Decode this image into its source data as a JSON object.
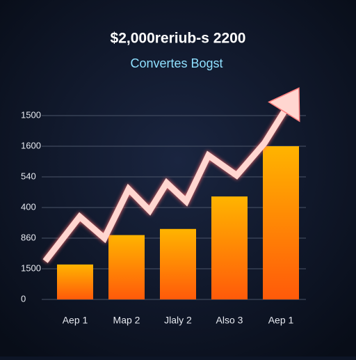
{
  "chart_data": {
    "type": "bar",
    "title": "$2,000reriub-s 2200",
    "subtitle": "Convertes Bogst",
    "categories": [
      "Aep 1",
      "Map 2",
      "Jlaly 2",
      "Also 3",
      "Aep 1"
    ],
    "values": [
      1.14,
      2.1,
      2.3,
      3.36,
      5.0
    ],
    "ylim": [
      0,
      6
    ],
    "yticks": [
      {
        "value": 0,
        "label": "0"
      },
      {
        "value": 1,
        "label": "1500"
      },
      {
        "value": 2,
        "label": "860"
      },
      {
        "value": 3,
        "label": "400"
      },
      {
        "value": 4,
        "label": "540"
      },
      {
        "value": 5,
        "label": "1600"
      },
      {
        "value": 6,
        "label": "1500"
      }
    ],
    "grid": true,
    "overlay": {
      "type": "line",
      "color": "#ffd6d0",
      "x": [
        -0.58,
        0.09,
        0.57,
        1.04,
        1.45,
        1.78,
        2.16,
        2.59,
        3.14,
        3.68,
        4.35
      ],
      "values": [
        1.25,
        2.7,
        2.0,
        3.6,
        2.9,
        3.8,
        3.2,
        4.7,
        4.05,
        5.1,
        6.9
      ]
    }
  }
}
